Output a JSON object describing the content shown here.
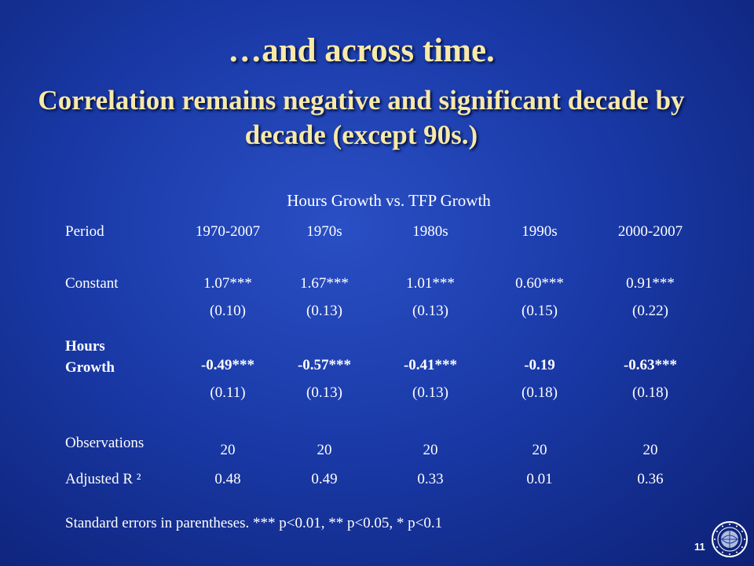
{
  "slide": {
    "title": "…and across time.",
    "subtitle": "Correlation remains negative and significant decade by decade (except 90s.)",
    "page_number": "11"
  },
  "table": {
    "caption": "Hours Growth vs. TFP Growth",
    "header": {
      "label": "Period",
      "columns": [
        "1970-2007",
        "1970s",
        "1980s",
        "1990s",
        "2000-2007"
      ]
    },
    "constant": {
      "label": "Constant",
      "coefs": [
        "1.07***",
        "1.67***",
        "1.01***",
        "0.60***",
        "0.91***"
      ],
      "ses": [
        "(0.10)",
        "(0.13)",
        "(0.13)",
        "(0.15)",
        "(0.22)"
      ]
    },
    "hours_growth": {
      "label": "Hours Growth",
      "coefs": [
        "-0.49***",
        "-0.57***",
        "-0.41***",
        "-0.19",
        "-0.63***"
      ],
      "ses": [
        "(0.11)",
        "(0.13)",
        "(0.13)",
        "(0.18)",
        "(0.18)"
      ]
    },
    "observations": {
      "label": "Observations",
      "values": [
        "20",
        "20",
        "20",
        "20",
        "20"
      ]
    },
    "adj_r2": {
      "label": "Adjusted R ²",
      "values": [
        "0.48",
        "0.49",
        "0.33",
        "0.01",
        "0.36"
      ]
    },
    "note": "Standard errors in parentheses. *** p<0.01, ** p<0.05, * p<0.1"
  }
}
